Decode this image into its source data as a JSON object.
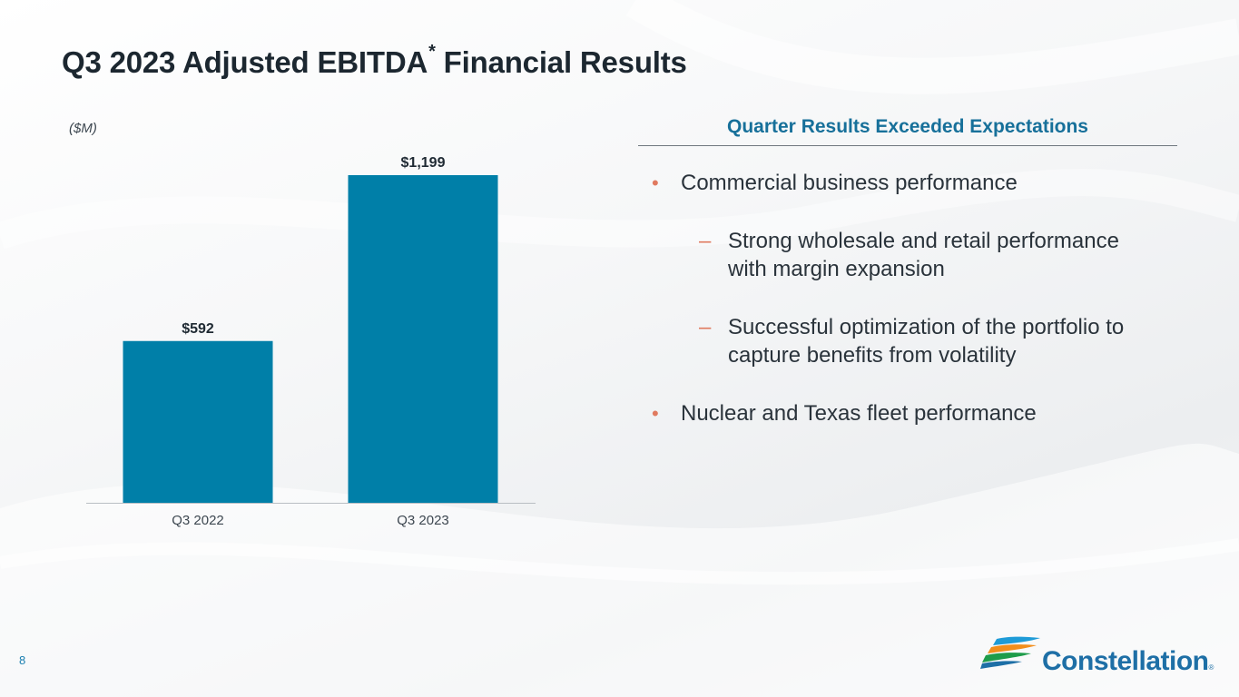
{
  "slide": {
    "title": "Q3 2023 Adjusted EBITDA",
    "title_superscript": "*",
    "title_suffix": " Financial Results",
    "unit": "($M)",
    "page_number": "8"
  },
  "chart_data": {
    "type": "bar",
    "categories": [
      "Q3 2022",
      "Q3 2023"
    ],
    "values": [
      592,
      1199
    ],
    "data_labels": [
      "$592",
      "$1,199"
    ],
    "ylabel": "($M)",
    "ylim": [
      0,
      1199
    ],
    "color": "#007fa8",
    "grid": false
  },
  "panel": {
    "heading": "Quarter Results Exceeded Expectations",
    "bullets": [
      {
        "level": 1,
        "marker": "•",
        "text": "Commercial business performance"
      },
      {
        "level": 2,
        "marker": "–",
        "text": "Strong wholesale and retail performance with margin expansion"
      },
      {
        "level": 2,
        "marker": "–",
        "text": "Successful optimization of the portfolio to capture benefits from volatility"
      },
      {
        "level": 1,
        "marker": "•",
        "text": "Nuclear and Texas fleet performance"
      }
    ]
  },
  "logo": {
    "name": "Constellation",
    "trademark": "®",
    "colors": [
      "#f28e1c",
      "#1e9c4a",
      "#1e6fa6"
    ]
  }
}
